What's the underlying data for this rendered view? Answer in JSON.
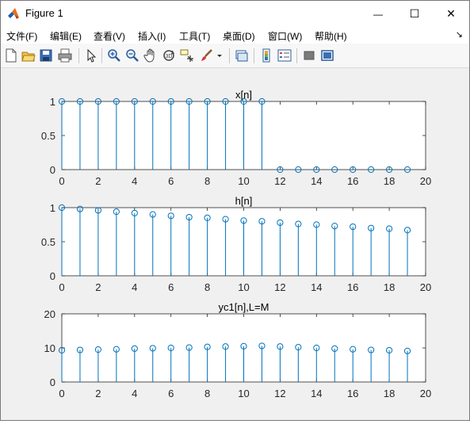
{
  "window": {
    "title": "Figure 1",
    "minimize": "—",
    "maximize": "☐",
    "close": "✕"
  },
  "menu": {
    "items": [
      "文件(F)",
      "编辑(E)",
      "查看(V)",
      "插入(I)",
      "工具(T)",
      "桌面(D)",
      "窗口(W)",
      "帮助(H)"
    ],
    "dock_arrow": "↘"
  },
  "toolbar": {
    "buttons": [
      "new-figure-icon",
      "open-file-icon",
      "save-icon",
      "print-icon",
      "edit-plot-arrow-icon",
      "zoom-in-icon",
      "zoom-out-icon",
      "pan-hand-icon",
      "rotate-3d-icon",
      "data-cursor-icon",
      "brush-icon",
      "brush-dropdown-icon",
      "link-plot-icon",
      "insert-colorbar-icon",
      "insert-legend-icon",
      "hide-plot-tools-icon",
      "show-plot-tools-icon"
    ]
  },
  "colors": {
    "stem": "#0072bd",
    "axes_bg": "#ffffff",
    "figure_bg": "#f0f0f0"
  },
  "chart_data": [
    {
      "type": "stem",
      "title": "x[n]",
      "x": [
        0,
        1,
        2,
        3,
        4,
        5,
        6,
        7,
        8,
        9,
        10,
        11,
        12,
        13,
        14,
        15,
        16,
        17,
        18,
        19
      ],
      "y": [
        1,
        1,
        1,
        1,
        1,
        1,
        1,
        1,
        1,
        1,
        1,
        1,
        0,
        0,
        0,
        0,
        0,
        0,
        0,
        0
      ],
      "xlim": [
        0,
        20
      ],
      "ylim": [
        0,
        1
      ],
      "xticks": [
        "0",
        "2",
        "4",
        "6",
        "8",
        "10",
        "12",
        "14",
        "16",
        "18",
        "20"
      ],
      "yticks": [
        "0",
        "0.5",
        "1"
      ],
      "ytick_values": [
        0,
        0.5,
        1
      ]
    },
    {
      "type": "stem",
      "title": "h[n]",
      "x": [
        0,
        1,
        2,
        3,
        4,
        5,
        6,
        7,
        8,
        9,
        10,
        11,
        12,
        13,
        14,
        15,
        16,
        17,
        18,
        19
      ],
      "y": [
        1,
        0.98,
        0.96,
        0.94,
        0.92,
        0.9,
        0.88,
        0.86,
        0.85,
        0.83,
        0.81,
        0.8,
        0.78,
        0.76,
        0.75,
        0.73,
        0.72,
        0.7,
        0.69,
        0.67
      ],
      "xlim": [
        0,
        20
      ],
      "ylim": [
        0,
        1
      ],
      "xticks": [
        "0",
        "2",
        "4",
        "6",
        "8",
        "10",
        "12",
        "14",
        "16",
        "18",
        "20"
      ],
      "yticks": [
        "0",
        "0.5",
        "1"
      ],
      "ytick_values": [
        0,
        0.5,
        1
      ]
    },
    {
      "type": "stem",
      "title": "yc1[n],L=M",
      "x": [
        0,
        1,
        2,
        3,
        4,
        5,
        6,
        7,
        8,
        9,
        10,
        11,
        12,
        13,
        14,
        15,
        16,
        17,
        18,
        19
      ],
      "y": [
        9.3,
        9.4,
        9.5,
        9.6,
        9.8,
        9.9,
        10.0,
        10.1,
        10.3,
        10.4,
        10.5,
        10.6,
        10.4,
        10.2,
        10.0,
        9.8,
        9.6,
        9.4,
        9.3,
        9.1
      ],
      "xlim": [
        0,
        20
      ],
      "ylim": [
        0,
        20
      ],
      "xticks": [
        "0",
        "2",
        "4",
        "6",
        "8",
        "10",
        "12",
        "14",
        "16",
        "18",
        "20"
      ],
      "yticks": [
        "0",
        "10",
        "20"
      ],
      "ytick_values": [
        0,
        10,
        20
      ]
    }
  ]
}
